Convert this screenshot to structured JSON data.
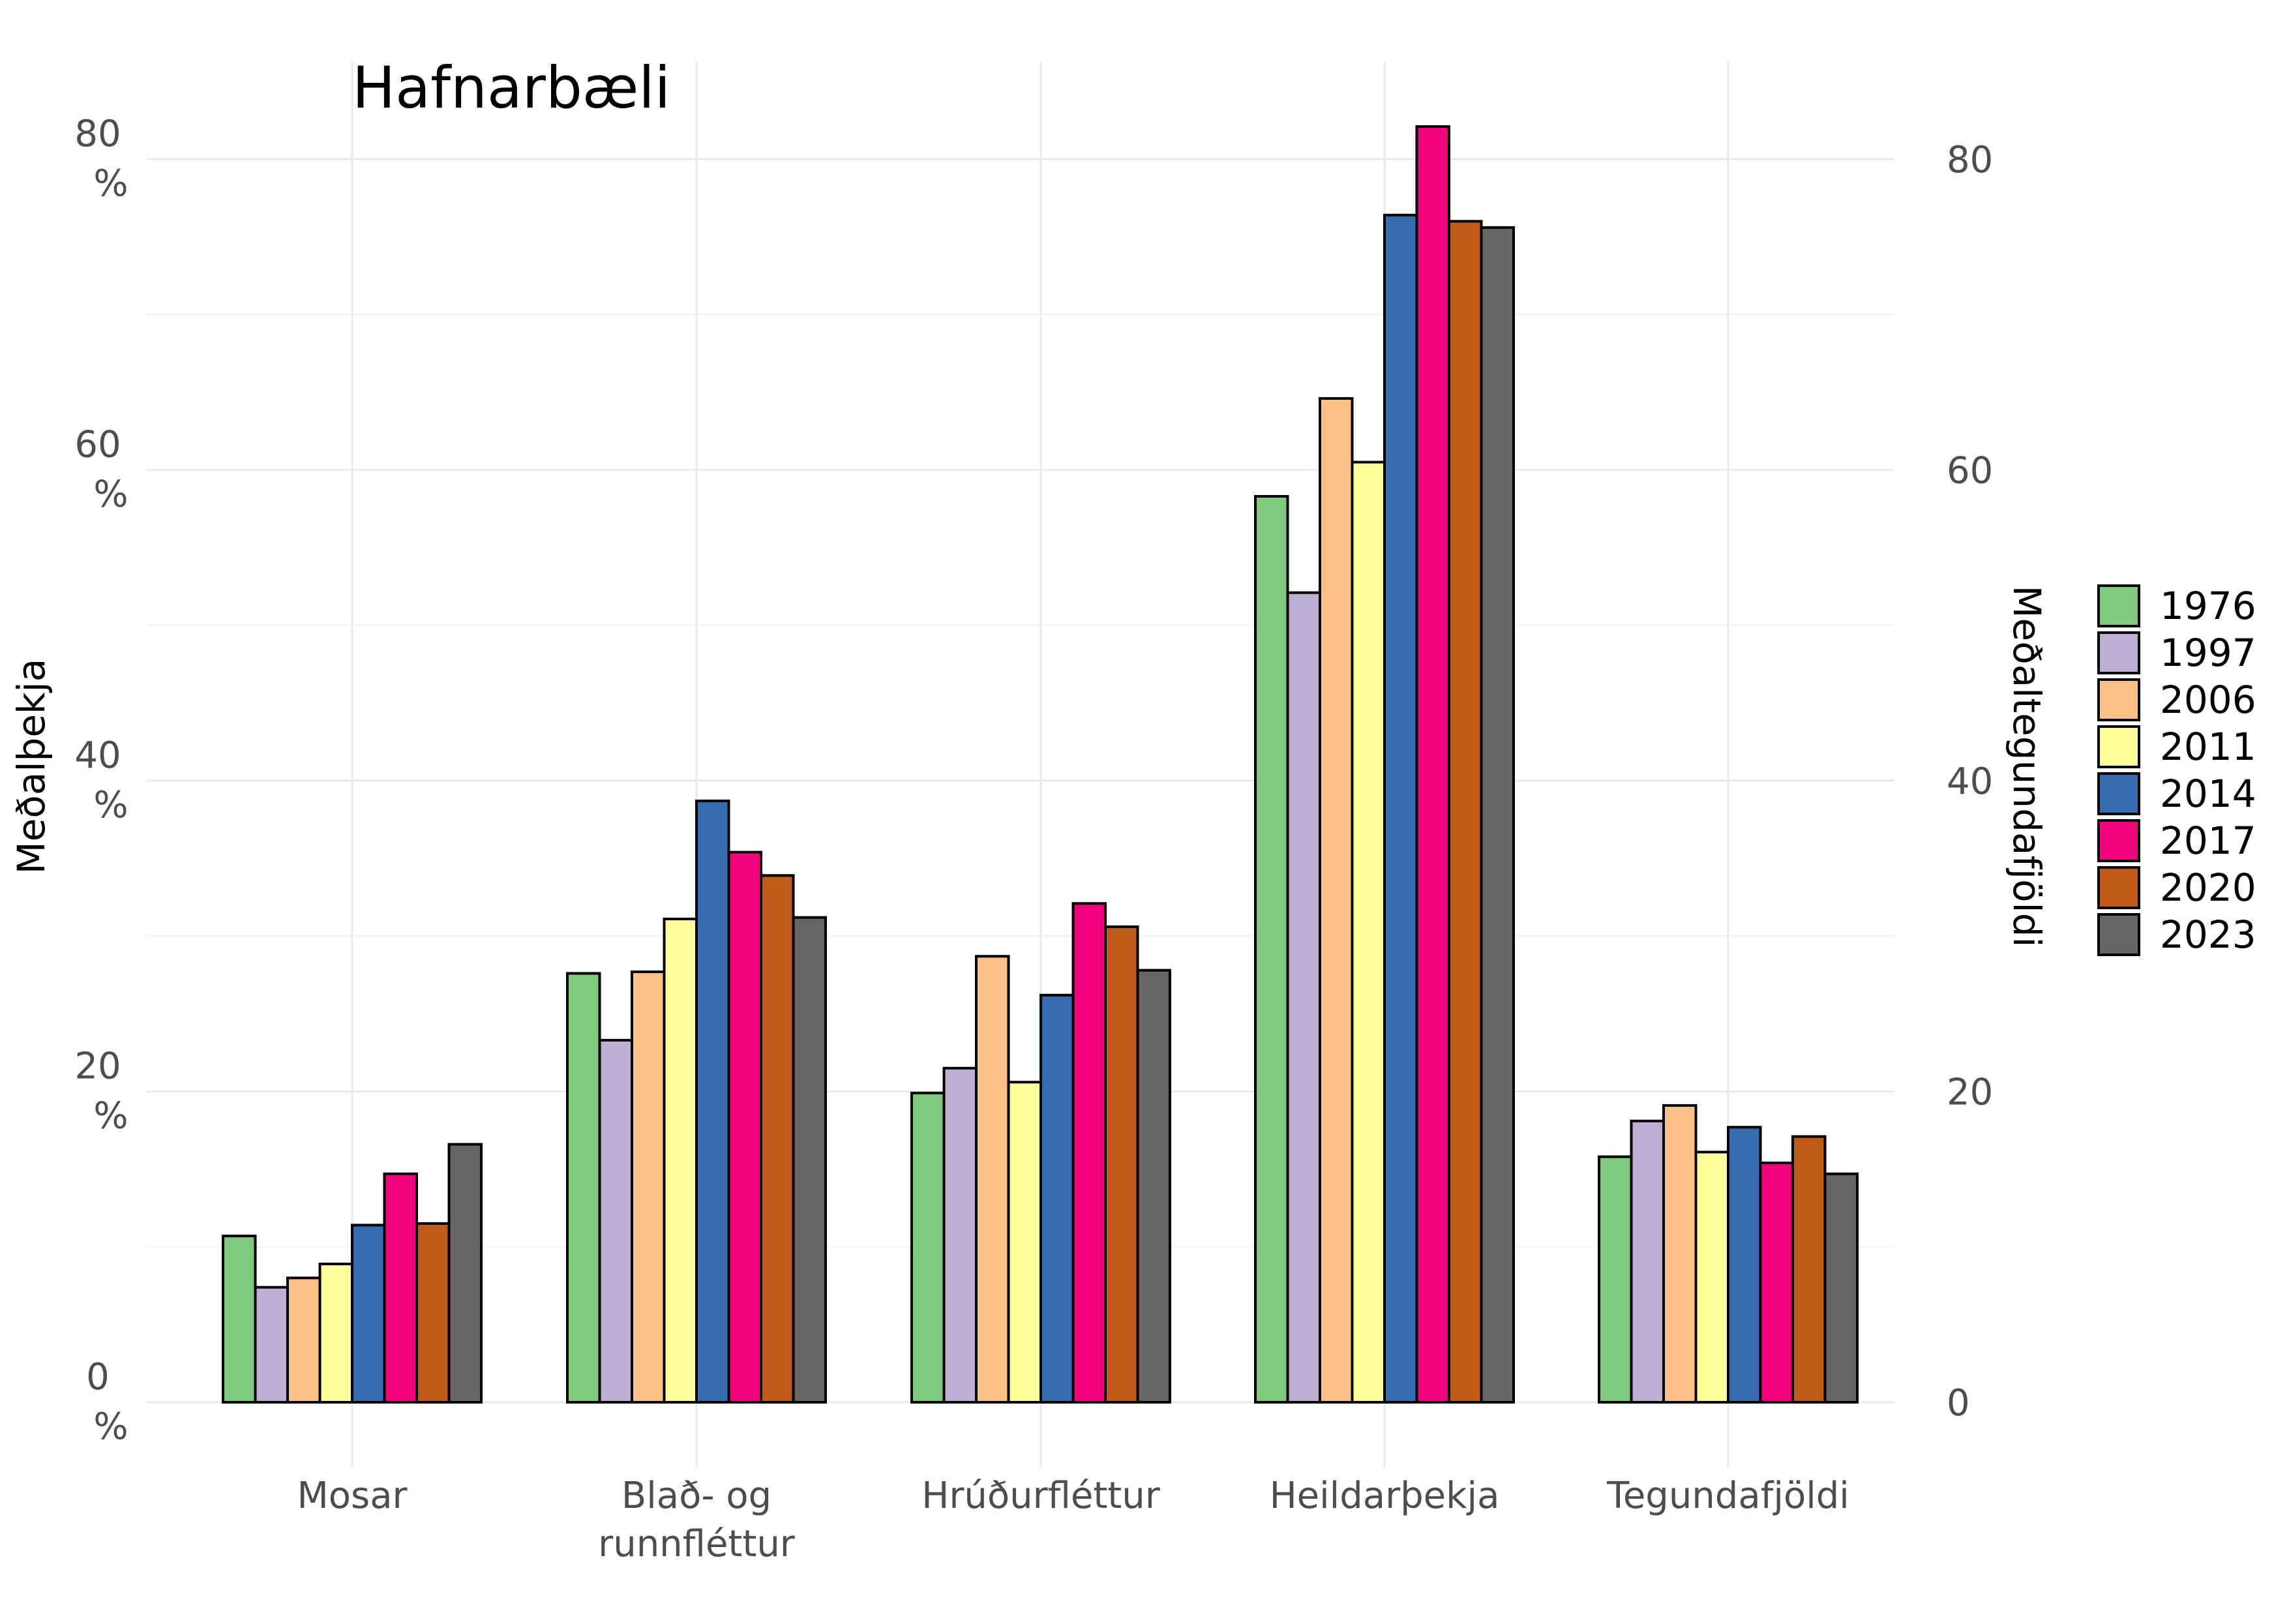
{
  "chart_data": {
    "type": "bar",
    "title": "Hafnarbæli",
    "ylabel_left": "Meðalþekja",
    "ylabel_right": "Meðaltegundafjöldi",
    "ylim": [
      0,
      86
    ],
    "left_ticks": [
      {
        "value": 0,
        "line1": "0",
        "line2": "%"
      },
      {
        "value": 20,
        "line1": "20",
        "line2": "%"
      },
      {
        "value": 40,
        "line1": "40",
        "line2": "%"
      },
      {
        "value": 60,
        "line1": "60",
        "line2": "%"
      },
      {
        "value": 80,
        "line1": "80",
        "line2": "%"
      }
    ],
    "right_ticks": [
      "0",
      "20",
      "40",
      "60",
      "80"
    ],
    "categories": [
      {
        "line1": "Mosar",
        "line2": ""
      },
      {
        "line1": "Blað- og",
        "line2": "runnfléttur"
      },
      {
        "line1": "Hrúðurfléttur",
        "line2": ""
      },
      {
        "line1": "Heildarþekja",
        "line2": ""
      },
      {
        "line1": "Tegundafjöldi",
        "line2": ""
      }
    ],
    "series": [
      {
        "name": "1976",
        "color": "#7fc97f",
        "values": [
          10.7,
          27.6,
          19.9,
          58.3,
          15.8
        ]
      },
      {
        "name": "1997",
        "color": "#beaed4",
        "values": [
          7.4,
          23.3,
          21.5,
          52.1,
          18.1
        ]
      },
      {
        "name": "2006",
        "color": "#fdc086",
        "values": [
          8.0,
          27.7,
          28.7,
          64.6,
          19.1
        ]
      },
      {
        "name": "2011",
        "color": "#ffff99",
        "values": [
          8.9,
          31.1,
          20.6,
          60.5,
          16.1
        ]
      },
      {
        "name": "2014",
        "color": "#386cb0",
        "values": [
          11.4,
          38.7,
          26.2,
          76.4,
          17.7
        ]
      },
      {
        "name": "2017",
        "color": "#f0027f",
        "values": [
          14.7,
          35.4,
          32.1,
          82.1,
          15.4
        ]
      },
      {
        "name": "2020",
        "color": "#bf5b17",
        "values": [
          11.5,
          33.9,
          30.6,
          76.0,
          17.1
        ]
      },
      {
        "name": "2023",
        "color": "#666666",
        "values": [
          16.6,
          31.2,
          27.8,
          75.6,
          14.7
        ]
      }
    ],
    "legend_position": "right",
    "grid": true
  }
}
